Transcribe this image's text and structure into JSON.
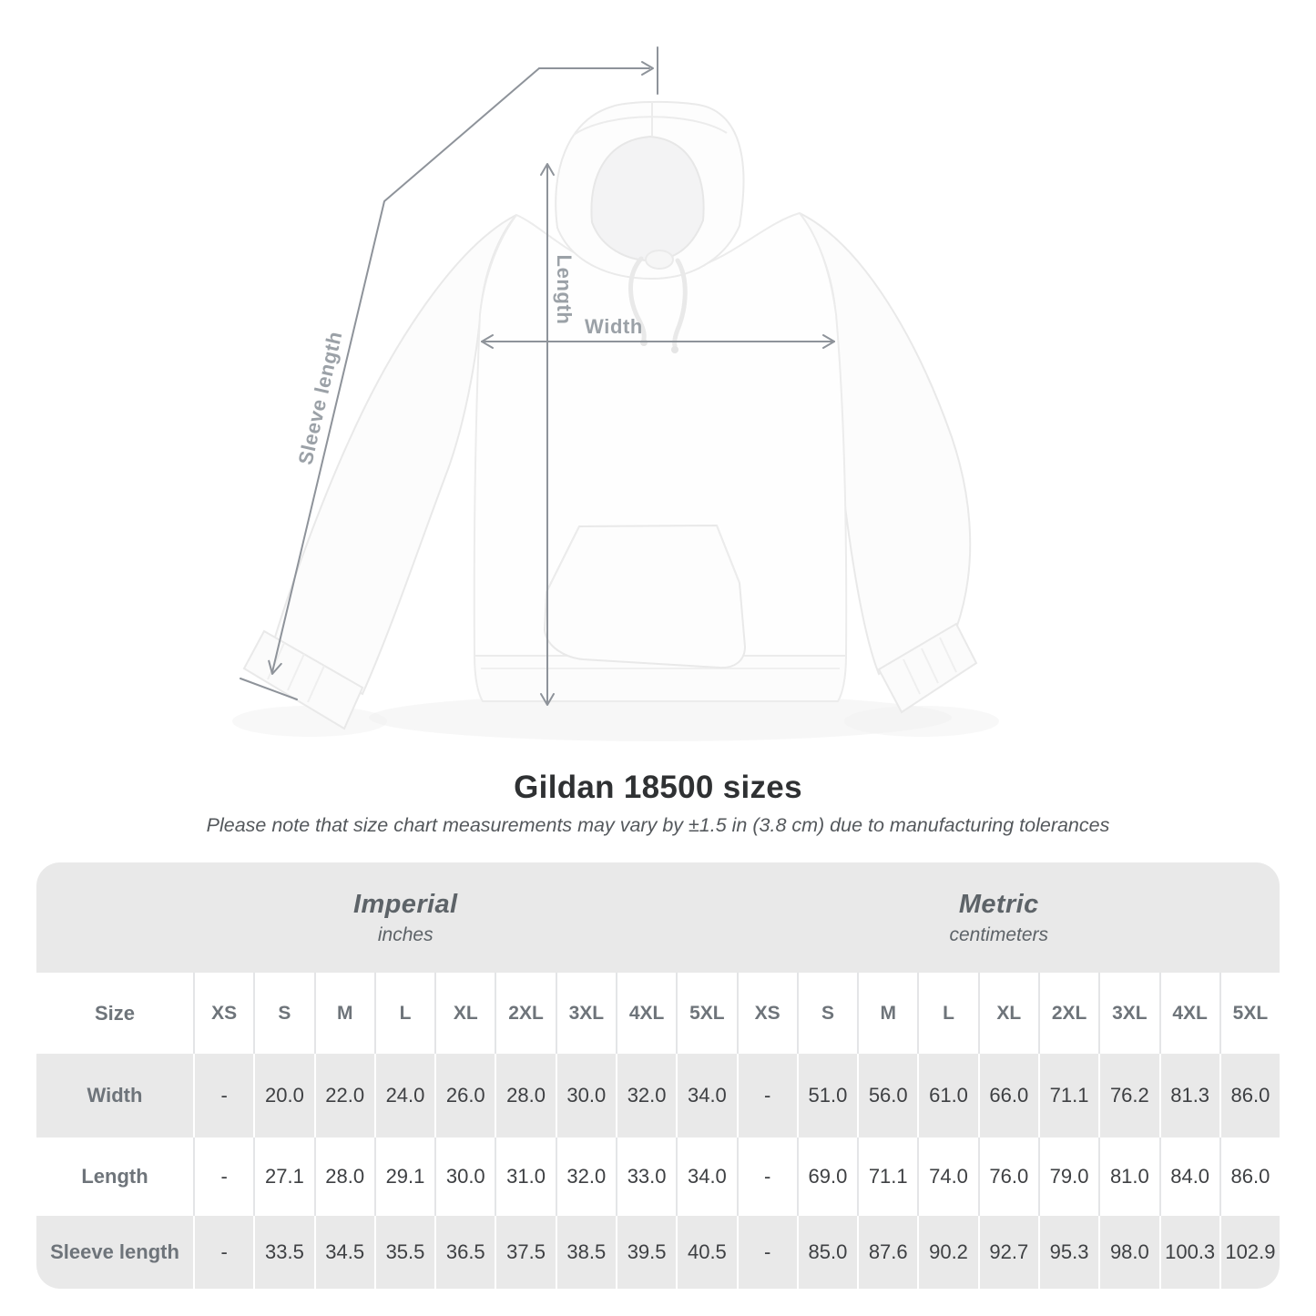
{
  "diagram": {
    "labels": {
      "length": "Length",
      "width": "Width",
      "sleeve": "Sleeve length"
    },
    "arrow_color": "#8e939a",
    "label_color": "#9ba1a7"
  },
  "heading": {
    "title": "Gildan 18500 sizes",
    "note": "Please note that size chart measurements may vary by ±1.5 in (3.8 cm) due to manufacturing tolerances"
  },
  "size_table": {
    "corner_label": "Size",
    "unit_systems": [
      {
        "name": "Imperial",
        "unit": "inches"
      },
      {
        "name": "Metric",
        "unit": "centimeters"
      }
    ],
    "sizes": [
      "XS",
      "S",
      "M",
      "L",
      "XL",
      "2XL",
      "3XL",
      "4XL",
      "5XL"
    ],
    "rows": [
      {
        "label": "Width",
        "imperial": [
          "-",
          "20.0",
          "22.0",
          "24.0",
          "26.0",
          "28.0",
          "30.0",
          "32.0",
          "34.0"
        ],
        "metric": [
          "-",
          "51.0",
          "56.0",
          "61.0",
          "66.0",
          "71.1",
          "76.2",
          "81.3",
          "86.0"
        ]
      },
      {
        "label": "Length",
        "imperial": [
          "-",
          "27.1",
          "28.0",
          "29.1",
          "30.0",
          "31.0",
          "32.0",
          "33.0",
          "34.0"
        ],
        "metric": [
          "-",
          "69.0",
          "71.1",
          "74.0",
          "76.0",
          "79.0",
          "81.0",
          "84.0",
          "86.0"
        ]
      },
      {
        "label": "Sleeve length",
        "imperial": [
          "-",
          "33.5",
          "34.5",
          "35.5",
          "36.5",
          "37.5",
          "38.5",
          "39.5",
          "40.5"
        ],
        "metric": [
          "-",
          "85.0",
          "87.6",
          "90.2",
          "92.7",
          "95.3",
          "98.0",
          "100.3",
          "102.9"
        ]
      }
    ],
    "colors": {
      "band_gray": "#e9e9e9",
      "separator_on_white": "#e4e5e7",
      "separator_on_gray": "#ffffff",
      "header_text": "#6e747a",
      "data_text": "#3e4043"
    }
  }
}
